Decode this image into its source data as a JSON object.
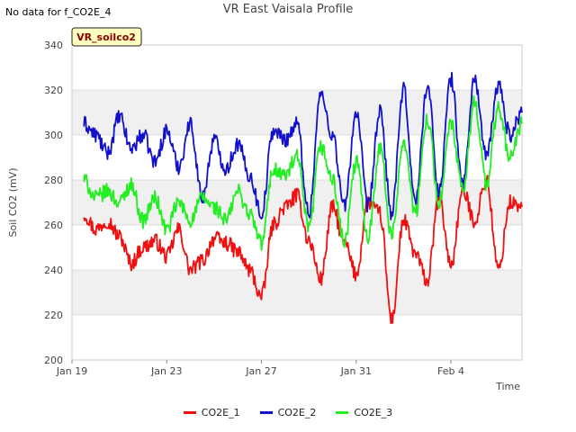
{
  "note": "No data for f_CO2E_4",
  "badge": "VR_soilco2",
  "colors": {
    "background": "#ffffff",
    "band": "#f0f0f0",
    "grid": "#dddddd",
    "badge_bg": "#ffffc0",
    "badge_text": "#8b0000"
  },
  "chart_data": {
    "type": "line",
    "title": "VR East Vaisala Profile",
    "xlabel": "Time",
    "ylabel": "Soil CO2 (mV)",
    "xlim": [
      "2024-01-19",
      "2024-02-07"
    ],
    "ylim": [
      200,
      340
    ],
    "yticks": [
      200,
      220,
      240,
      260,
      280,
      300,
      320,
      340
    ],
    "xticks": [
      {
        "label": "Jan 19",
        "date": "2024-01-19"
      },
      {
        "label": "Jan 23",
        "date": "2024-01-23"
      },
      {
        "label": "Jan 27",
        "date": "2024-01-27"
      },
      {
        "label": "Jan 31",
        "date": "2024-01-31"
      },
      {
        "label": "Feb 4",
        "date": "2024-02-04"
      }
    ],
    "legend_position": "bottom-center",
    "series": [
      {
        "name": "CO2E_1",
        "color": "#ee1111",
        "x": [
          "2024-01-19 12:00",
          "2024-01-20 00:00",
          "2024-01-20 12:00",
          "2024-01-21 00:00",
          "2024-01-21 12:00",
          "2024-01-22 00:00",
          "2024-01-22 12:00",
          "2024-01-23 00:00",
          "2024-01-23 12:00",
          "2024-01-24 00:00",
          "2024-01-24 12:00",
          "2024-01-25 00:00",
          "2024-01-25 12:00",
          "2024-01-26 00:00",
          "2024-01-26 12:00",
          "2024-01-27 00:00",
          "2024-01-27 12:00",
          "2024-01-28 00:00",
          "2024-01-28 12:00",
          "2024-01-29 00:00",
          "2024-01-29 12:00",
          "2024-01-30 00:00",
          "2024-01-30 12:00",
          "2024-01-31 00:00",
          "2024-01-31 12:00",
          "2024-02-01 00:00",
          "2024-02-01 12:00",
          "2024-02-02 00:00",
          "2024-02-02 12:00",
          "2024-02-03 00:00",
          "2024-02-03 12:00",
          "2024-02-04 00:00",
          "2024-02-04 12:00",
          "2024-02-05 00:00",
          "2024-02-05 12:00",
          "2024-02-06 00:00",
          "2024-02-06 12:00",
          "2024-02-07 00:00"
        ],
        "values": [
          265,
          258,
          262,
          255,
          243,
          250,
          253,
          246,
          258,
          240,
          244,
          254,
          252,
          248,
          240,
          228,
          260,
          268,
          273,
          253,
          236,
          268,
          252,
          238,
          270,
          265,
          218,
          262,
          247,
          235,
          272,
          242,
          275,
          262,
          280,
          240,
          270,
          268
        ]
      },
      {
        "name": "CO2E_2",
        "color": "#1111cc",
        "x": [
          "2024-01-19 12:00",
          "2024-01-20 00:00",
          "2024-01-20 12:00",
          "2024-01-21 00:00",
          "2024-01-21 12:00",
          "2024-01-22 00:00",
          "2024-01-22 12:00",
          "2024-01-23 00:00",
          "2024-01-23 12:00",
          "2024-01-24 00:00",
          "2024-01-24 12:00",
          "2024-01-25 00:00",
          "2024-01-25 12:00",
          "2024-01-26 00:00",
          "2024-01-26 12:00",
          "2024-01-27 00:00",
          "2024-01-27 12:00",
          "2024-01-28 00:00",
          "2024-01-28 12:00",
          "2024-01-29 00:00",
          "2024-01-29 12:00",
          "2024-01-30 00:00",
          "2024-01-30 12:00",
          "2024-01-31 00:00",
          "2024-01-31 12:00",
          "2024-02-01 00:00",
          "2024-02-01 12:00",
          "2024-02-02 00:00",
          "2024-02-02 12:00",
          "2024-02-03 00:00",
          "2024-02-03 12:00",
          "2024-02-04 00:00",
          "2024-02-04 12:00",
          "2024-02-05 00:00",
          "2024-02-05 12:00",
          "2024-02-06 00:00",
          "2024-02-06 12:00",
          "2024-02-07 00:00"
        ],
        "values": [
          305,
          300,
          292,
          308,
          294,
          300,
          288,
          302,
          286,
          305,
          272,
          298,
          285,
          296,
          282,
          265,
          302,
          298,
          305,
          265,
          318,
          300,
          268,
          310,
          268,
          310,
          265,
          320,
          270,
          322,
          275,
          325,
          278,
          325,
          290,
          322,
          300,
          310
        ]
      },
      {
        "name": "CO2E_3",
        "color": "#22ee22",
        "x": [
          "2024-01-19 12:00",
          "2024-01-20 00:00",
          "2024-01-20 12:00",
          "2024-01-21 00:00",
          "2024-01-21 12:00",
          "2024-01-22 00:00",
          "2024-01-22 12:00",
          "2024-01-23 00:00",
          "2024-01-23 12:00",
          "2024-01-24 00:00",
          "2024-01-24 12:00",
          "2024-01-25 00:00",
          "2024-01-25 12:00",
          "2024-01-26 00:00",
          "2024-01-26 12:00",
          "2024-01-27 00:00",
          "2024-01-27 12:00",
          "2024-01-28 00:00",
          "2024-01-28 12:00",
          "2024-01-29 00:00",
          "2024-01-29 12:00",
          "2024-01-30 00:00",
          "2024-01-30 12:00",
          "2024-01-31 00:00",
          "2024-01-31 12:00",
          "2024-02-01 00:00",
          "2024-02-01 12:00",
          "2024-02-02 00:00",
          "2024-02-02 12:00",
          "2024-02-03 00:00",
          "2024-02-03 12:00",
          "2024-02-04 00:00",
          "2024-02-04 12:00",
          "2024-02-05 00:00",
          "2024-02-05 12:00",
          "2024-02-06 00:00",
          "2024-02-06 12:00",
          "2024-02-07 00:00"
        ],
        "values": [
          280,
          272,
          275,
          270,
          278,
          262,
          272,
          258,
          270,
          262,
          272,
          268,
          262,
          275,
          265,
          252,
          285,
          282,
          290,
          258,
          295,
          280,
          252,
          288,
          255,
          295,
          255,
          298,
          265,
          308,
          270,
          305,
          275,
          315,
          278,
          312,
          290,
          305
        ]
      }
    ]
  }
}
